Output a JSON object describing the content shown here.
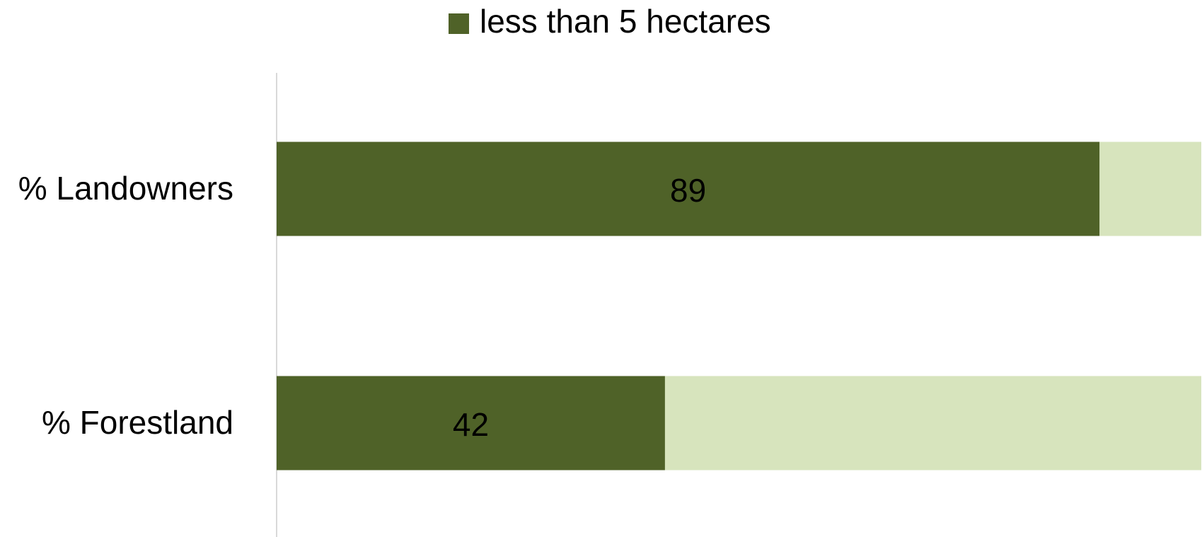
{
  "chart_data": {
    "type": "bar",
    "orientation": "horizontal",
    "stacked": true,
    "categories": [
      "% Landowners",
      "% Forestland"
    ],
    "series": [
      {
        "name": "less than 5 hectares",
        "values": [
          89,
          42
        ],
        "color": "#4f6228",
        "show_labels": true
      },
      {
        "values": [
          11,
          58
        ],
        "color": "#d7e4bd",
        "show_labels": false
      }
    ],
    "xlim": [
      0,
      100
    ],
    "legend_position": "top",
    "grid": false
  }
}
